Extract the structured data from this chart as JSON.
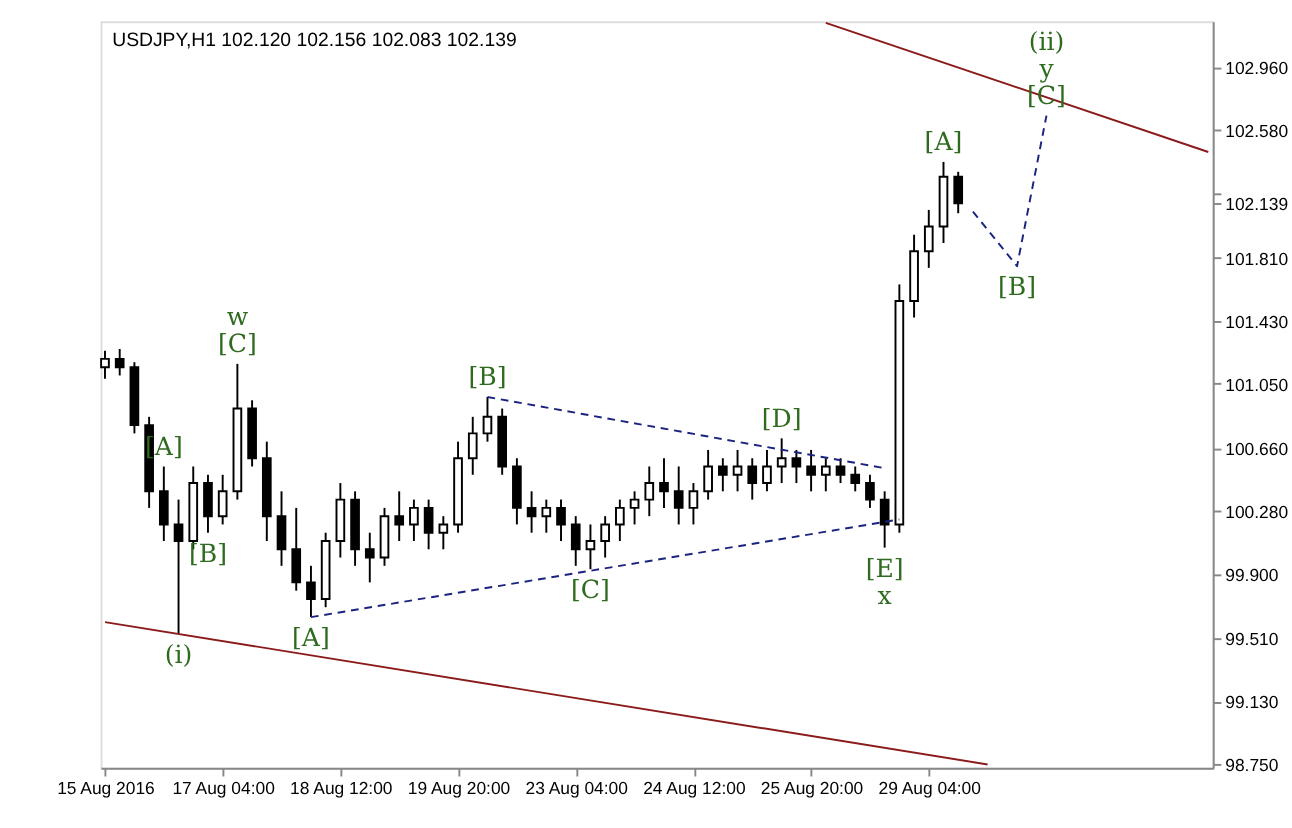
{
  "chart_data": {
    "type": "candlestick",
    "title": "USDJPY,H1  102.120 102.156 102.083 102.139",
    "categories": [
      "15 Aug 2016",
      null,
      null,
      null,
      null,
      null,
      null,
      null,
      "17 Aug 04:00",
      null,
      null,
      null,
      null,
      null,
      null,
      null,
      "18 Aug 12:00",
      null,
      null,
      null,
      null,
      null,
      null,
      null,
      "19 Aug 20:00",
      null,
      null,
      null,
      null,
      null,
      null,
      null,
      "23 Aug 04:00",
      null,
      null,
      null,
      null,
      null,
      null,
      null,
      "24 Aug 12:00",
      null,
      null,
      null,
      null,
      null,
      null,
      null,
      "25 Aug 20:00",
      null,
      null,
      null,
      null,
      null,
      null,
      null,
      "29 Aug 04:00",
      null,
      null,
      null,
      null,
      null,
      null,
      null,
      null,
      null,
      null,
      null,
      null,
      null,
      null,
      null,
      null,
      null,
      null,
      null
    ],
    "ohlc": [
      [
        101.15,
        101.25,
        101.08,
        101.2
      ],
      [
        101.2,
        101.26,
        101.1,
        101.15
      ],
      [
        101.15,
        101.18,
        100.75,
        100.8
      ],
      [
        100.8,
        100.85,
        100.3,
        100.4
      ],
      [
        100.4,
        100.55,
        100.1,
        100.2
      ],
      [
        100.2,
        100.35,
        99.54,
        100.1
      ],
      [
        100.1,
        100.55,
        100.05,
        100.45
      ],
      [
        100.45,
        100.5,
        100.15,
        100.25
      ],
      [
        100.25,
        100.5,
        100.2,
        100.4
      ],
      [
        100.4,
        101.17,
        100.35,
        100.9
      ],
      [
        100.9,
        100.95,
        100.55,
        100.6
      ],
      [
        100.6,
        100.7,
        100.1,
        100.25
      ],
      [
        100.25,
        100.4,
        99.95,
        100.05
      ],
      [
        100.05,
        100.3,
        99.8,
        99.85
      ],
      [
        99.85,
        99.95,
        99.64,
        99.75
      ],
      [
        99.75,
        100.15,
        99.7,
        100.1
      ],
      [
        100.1,
        100.45,
        100.0,
        100.35
      ],
      [
        100.35,
        100.4,
        99.95,
        100.05
      ],
      [
        100.05,
        100.15,
        99.85,
        100.0
      ],
      [
        100.0,
        100.3,
        99.95,
        100.25
      ],
      [
        100.25,
        100.4,
        100.1,
        100.2
      ],
      [
        100.2,
        100.35,
        100.1,
        100.3
      ],
      [
        100.3,
        100.35,
        100.05,
        100.15
      ],
      [
        100.15,
        100.25,
        100.05,
        100.2
      ],
      [
        100.2,
        100.7,
        100.15,
        100.6
      ],
      [
        100.6,
        100.85,
        100.5,
        100.75
      ],
      [
        100.75,
        100.97,
        100.7,
        100.85
      ],
      [
        100.85,
        100.9,
        100.5,
        100.55
      ],
      [
        100.55,
        100.6,
        100.2,
        100.3
      ],
      [
        100.3,
        100.4,
        100.15,
        100.25
      ],
      [
        100.25,
        100.35,
        100.15,
        100.3
      ],
      [
        100.3,
        100.35,
        100.1,
        100.2
      ],
      [
        100.2,
        100.25,
        99.95,
        100.05
      ],
      [
        100.05,
        100.2,
        99.93,
        100.1
      ],
      [
        100.1,
        100.25,
        100.0,
        100.2
      ],
      [
        100.2,
        100.35,
        100.1,
        100.3
      ],
      [
        100.3,
        100.4,
        100.2,
        100.35
      ],
      [
        100.35,
        100.55,
        100.25,
        100.45
      ],
      [
        100.45,
        100.6,
        100.3,
        100.4
      ],
      [
        100.4,
        100.55,
        100.2,
        100.3
      ],
      [
        100.3,
        100.45,
        100.2,
        100.4
      ],
      [
        100.4,
        100.65,
        100.35,
        100.55
      ],
      [
        100.55,
        100.6,
        100.4,
        100.5
      ],
      [
        100.5,
        100.65,
        100.4,
        100.55
      ],
      [
        100.55,
        100.6,
        100.35,
        100.45
      ],
      [
        100.45,
        100.65,
        100.4,
        100.55
      ],
      [
        100.55,
        100.72,
        100.45,
        100.6
      ],
      [
        100.6,
        100.65,
        100.45,
        100.55
      ],
      [
        100.55,
        100.65,
        100.4,
        100.5
      ],
      [
        100.5,
        100.6,
        100.4,
        100.55
      ],
      [
        100.55,
        100.6,
        100.45,
        100.5
      ],
      [
        100.5,
        100.55,
        100.4,
        100.45
      ],
      [
        100.45,
        100.5,
        100.3,
        100.35
      ],
      [
        100.35,
        100.4,
        100.06,
        100.2
      ],
      [
        100.2,
        101.65,
        100.15,
        101.55
      ],
      [
        101.55,
        101.95,
        101.45,
        101.85
      ],
      [
        101.85,
        102.1,
        101.75,
        102.0
      ],
      [
        102.0,
        102.39,
        101.9,
        102.3
      ],
      [
        102.3,
        102.33,
        102.08,
        102.14
      ],
      null,
      null,
      null,
      null,
      null,
      null,
      null,
      null,
      null,
      null,
      null,
      null,
      null,
      null,
      null,
      null,
      null
    ],
    "color": "#000000",
    "series": [
      {
        "type": "line",
        "color": "#8b1a1a",
        "line_style": "solid",
        "values": [
          null,
          null,
          null,
          null,
          null,
          null,
          null,
          null,
          null,
          null,
          null,
          null,
          null,
          null,
          null,
          null,
          null,
          null,
          null,
          null,
          null,
          null,
          null,
          null,
          null,
          null,
          null,
          null,
          null,
          null,
          null,
          null,
          null,
          null,
          null,
          null,
          null,
          null,
          null,
          null,
          null,
          null,
          null,
          null,
          null,
          null,
          null,
          null,
          null,
          103.23,
          null,
          null,
          null,
          null,
          null,
          null,
          null,
          null,
          null,
          null,
          null,
          null,
          null,
          null,
          null,
          null,
          null,
          null,
          null,
          null,
          null,
          null,
          null,
          null,
          null,
          102.45
        ]
      },
      {
        "type": "line",
        "color": "#8b1a1a",
        "line_style": "solid",
        "values": [
          99.61,
          null,
          null,
          null,
          null,
          null,
          null,
          null,
          null,
          null,
          null,
          null,
          null,
          null,
          null,
          null,
          null,
          null,
          null,
          null,
          null,
          null,
          null,
          null,
          null,
          null,
          null,
          null,
          null,
          null,
          null,
          null,
          null,
          null,
          null,
          null,
          null,
          null,
          null,
          null,
          null,
          null,
          null,
          null,
          null,
          null,
          null,
          null,
          null,
          null,
          null,
          null,
          null,
          null,
          null,
          null,
          null,
          null,
          null,
          null,
          98.75,
          null,
          null,
          null,
          null,
          null,
          null,
          null,
          null,
          null,
          null,
          null,
          null,
          null,
          null,
          null
        ]
      },
      {
        "type": "line",
        "color": "#1a237e",
        "line_style": "dashed",
        "values": [
          null,
          null,
          null,
          null,
          null,
          null,
          null,
          null,
          null,
          null,
          null,
          null,
          null,
          null,
          99.64,
          null,
          null,
          null,
          null,
          null,
          null,
          null,
          null,
          null,
          null,
          null,
          null,
          null,
          null,
          null,
          null,
          null,
          null,
          null,
          null,
          null,
          null,
          null,
          null,
          null,
          null,
          null,
          null,
          null,
          null,
          null,
          null,
          null,
          null,
          null,
          null,
          null,
          null,
          null,
          100.23,
          null,
          null,
          null,
          null,
          null,
          null,
          null,
          null,
          null,
          null,
          null,
          null,
          null,
          null,
          null,
          null,
          null,
          null,
          null,
          null,
          null
        ]
      },
      {
        "type": "line",
        "color": "#1a237e",
        "line_style": "dashed",
        "values": [
          null,
          null,
          null,
          null,
          null,
          null,
          null,
          null,
          null,
          null,
          null,
          null,
          null,
          null,
          null,
          null,
          null,
          null,
          null,
          null,
          null,
          null,
          null,
          null,
          null,
          null,
          100.97,
          null,
          null,
          null,
          null,
          null,
          null,
          null,
          null,
          null,
          null,
          null,
          null,
          null,
          null,
          null,
          null,
          null,
          null,
          null,
          null,
          null,
          null,
          null,
          null,
          null,
          null,
          100.54,
          null,
          null,
          null,
          null,
          null,
          null,
          null,
          null,
          null,
          null,
          null,
          null,
          null,
          null,
          null,
          null,
          null,
          null,
          null,
          null,
          null,
          null
        ]
      },
      {
        "type": "line",
        "color": "#1a237e",
        "line_style": "dashed",
        "values": [
          null,
          null,
          null,
          null,
          null,
          null,
          null,
          null,
          null,
          null,
          null,
          null,
          null,
          null,
          null,
          null,
          null,
          null,
          null,
          null,
          null,
          null,
          null,
          null,
          null,
          null,
          null,
          null,
          null,
          null,
          null,
          null,
          null,
          null,
          null,
          null,
          null,
          null,
          null,
          null,
          null,
          null,
          null,
          null,
          null,
          null,
          null,
          null,
          null,
          null,
          null,
          null,
          null,
          null,
          null,
          null,
          null,
          null,
          null,
          102.09,
          null,
          null,
          101.76,
          null,
          102.67,
          null,
          null,
          null,
          null,
          null,
          null,
          null,
          null,
          null,
          null,
          null
        ]
      }
    ],
    "ylim": [
      98.73,
      103.24
    ],
    "yticks": [
      {
        "value": 98.75,
        "label": "98.750"
      },
      {
        "value": 99.13,
        "label": "99.130"
      },
      {
        "value": 99.51,
        "label": "99.510"
      },
      {
        "value": 99.9,
        "label": "99.900"
      },
      {
        "value": 100.28,
        "label": "100.280"
      },
      {
        "value": 100.66,
        "label": "100.660"
      },
      {
        "value": 101.05,
        "label": "101.050"
      },
      {
        "value": 101.43,
        "label": "101.430"
      },
      {
        "value": 101.81,
        "label": "101.810"
      },
      {
        "value": 102.139,
        "label": "102.139"
      },
      {
        "value": 102.2,
        "label": null
      },
      {
        "value": 102.58,
        "label": "102.580"
      },
      {
        "value": 102.96,
        "label": "102.960"
      }
    ],
    "grid": false,
    "annotations": [
      {
        "text": "(i)",
        "y": 99.54
      },
      {
        "text": "[A]",
        "y": 100.55
      },
      {
        "text": "[B]",
        "y": 100.15
      },
      {
        "text": "[C]",
        "y": 101.17
      },
      {
        "text": "w",
        "y": 101.17
      },
      {
        "text": "[A]",
        "y": 99.64
      },
      {
        "text": "[B]",
        "y": 100.97
      },
      {
        "text": "[C]",
        "y": 99.93
      },
      {
        "text": "[D]",
        "y": 100.72
      },
      {
        "text": "[E]",
        "y": 100.06
      },
      {
        "text": "x",
        "y": 100.06
      },
      {
        "text": "[A]",
        "y": 102.39
      },
      {
        "text": "[B]",
        "y": 101.76
      },
      {
        "text": "[C]",
        "y": 102.67
      },
      {
        "text": "y",
        "y": 102.67
      },
      {
        "text": "(ii)",
        "y": 102.67
      }
    ]
  }
}
